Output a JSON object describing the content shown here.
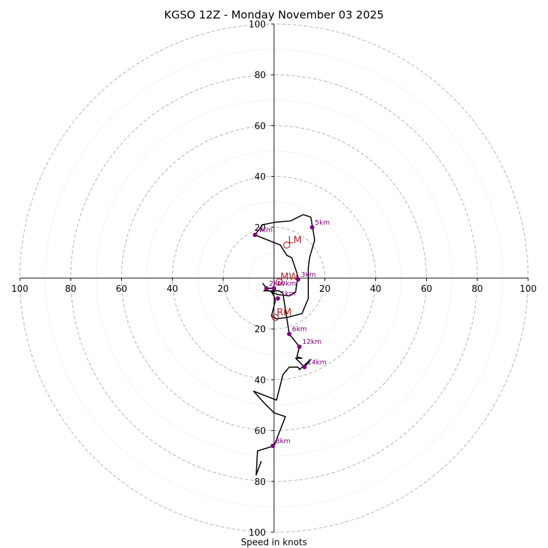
{
  "chart_data": {
    "type": "hodograph",
    "title": "KGSO 12Z - Monday November 03 2025",
    "xlabel": "Speed in knots",
    "range": [
      -100,
      100
    ],
    "major_rings": [
      20,
      40,
      60,
      80,
      100
    ],
    "minor_rings": [
      10,
      30,
      50,
      70,
      90
    ],
    "x_tick_labels": [
      "100",
      "80",
      "60",
      "40",
      "20",
      "20",
      "40",
      "60",
      "80",
      "100"
    ],
    "x_tick_values": [
      -100,
      -80,
      -60,
      -40,
      -20,
      20,
      40,
      60,
      80,
      100
    ],
    "y_tick_labels": [
      "100",
      "80",
      "60",
      "40",
      "20",
      "20",
      "40",
      "60",
      "80",
      "100"
    ],
    "y_tick_values": [
      100,
      80,
      60,
      40,
      20,
      -20,
      -40,
      -60,
      -80,
      -100
    ],
    "colors": {
      "trace": "#000000",
      "points": "#800080",
      "motion": "#b22222",
      "grid": "#b0b0b0"
    },
    "trace": [
      [
        -4.5,
        -2.0
      ],
      [
        -3.0,
        -4.0
      ],
      [
        0.0,
        -4.0
      ],
      [
        0.5,
        -4.5
      ],
      [
        0.5,
        -5.0
      ],
      [
        -1.0,
        -5.5
      ],
      [
        0.0,
        -7.0
      ],
      [
        0.5,
        -9.0
      ],
      [
        -1.0,
        -15.0
      ],
      [
        1.0,
        -16.0
      ],
      [
        5.0,
        -15.5
      ],
      [
        11.0,
        -14.0
      ],
      [
        13.5,
        -8.0
      ],
      [
        13.5,
        4.0
      ],
      [
        14.0,
        8.0
      ],
      [
        16.0,
        15.0
      ],
      [
        14.5,
        24.0
      ],
      [
        11.5,
        25.0
      ],
      [
        6.5,
        22.5
      ],
      [
        0.5,
        22.0
      ],
      [
        -4.5,
        21.0
      ],
      [
        -7.5,
        17.0
      ],
      [
        -2.5,
        15.0
      ],
      [
        2.5,
        13.0
      ],
      [
        5.0,
        9.0
      ],
      [
        7.0,
        8.0
      ],
      [
        9.0,
        2.0
      ],
      [
        9.5,
        0.0
      ],
      [
        9.0,
        -2.0
      ],
      [
        8.5,
        -5.5
      ],
      [
        6.0,
        -7.0
      ],
      [
        1.5,
        -6.5
      ],
      [
        -3.0,
        -4.5
      ],
      [
        -4.0,
        -5.0
      ],
      [
        2.0,
        -5.0
      ],
      [
        3.5,
        -6.0
      ],
      [
        6.0,
        -22.0
      ],
      [
        10.0,
        -27.0
      ],
      [
        9.0,
        -31.0
      ],
      [
        11.0,
        -31.5
      ],
      [
        8.5,
        -31.5
      ],
      [
        9.0,
        -32.0
      ],
      [
        12.0,
        -35.0
      ],
      [
        14.5,
        -32.0
      ],
      [
        10.0,
        -36.0
      ],
      [
        9.5,
        -35.0
      ],
      [
        6.0,
        -35.0
      ],
      [
        3.5,
        -38.0
      ],
      [
        1.0,
        -48.0
      ],
      [
        -8.0,
        -44.5
      ],
      [
        -4.0,
        -49.0
      ],
      [
        0.0,
        -53.0
      ],
      [
        4.5,
        -54.5
      ],
      [
        0.0,
        -66.0
      ],
      [
        -6.5,
        -68.0
      ],
      [
        -7.0,
        -77.5
      ],
      [
        -5.0,
        -72.0
      ]
    ],
    "height_markers": [
      {
        "label": "1km",
        "u": 1.5,
        "v": -8.0
      },
      {
        "label": "2km",
        "u": -3.0,
        "v": -4.0
      },
      {
        "label": "3km",
        "u": 9.5,
        "v": -0.5
      },
      {
        "label": "4km",
        "u": -7.5,
        "v": 17.0
      },
      {
        "label": "5km",
        "u": 15.0,
        "v": 20.0
      },
      {
        "label": "6km",
        "u": 6.0,
        "v": -22.0
      },
      {
        "label": "8km",
        "u": -0.5,
        "v": -66.0
      },
      {
        "label": "10km",
        "u": 0.0,
        "v": -4.0
      },
      {
        "label": "12km",
        "u": 10.0,
        "v": -27.0
      },
      {
        "label": "14km",
        "u": 12.0,
        "v": -35.0
      }
    ],
    "storm_motion": [
      {
        "label": "LM",
        "u": 5.0,
        "v": 13.0
      },
      {
        "label": "MW",
        "u": 2.0,
        "v": -1.5
      },
      {
        "label": "RM",
        "u": 0.5,
        "v": -15.5
      }
    ]
  }
}
